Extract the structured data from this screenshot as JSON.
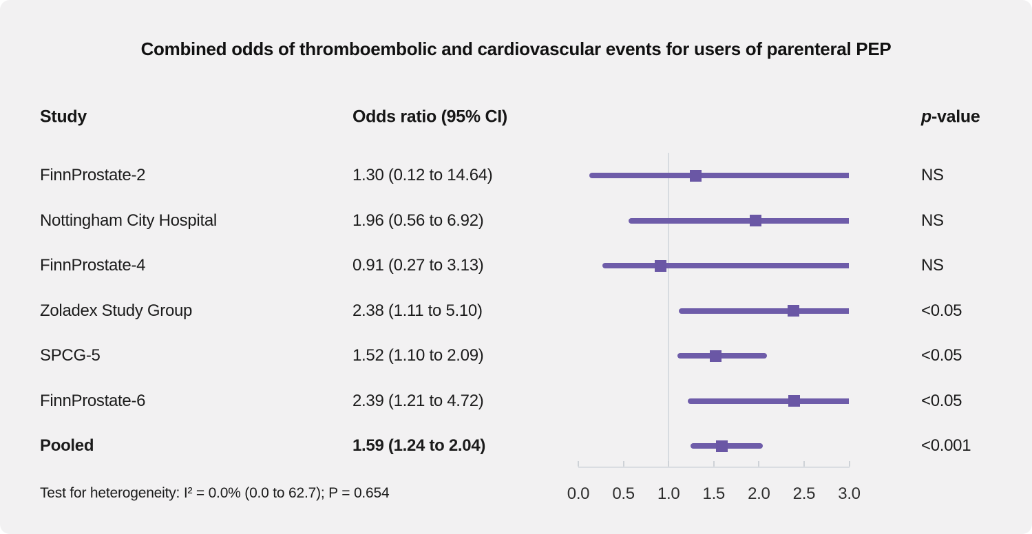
{
  "title": "Combined odds of thromboembolic and cardiovascular events for users of parenteral PEP",
  "columns": {
    "study": "Study",
    "odds_ratio": "Odds ratio (95% CI)",
    "p_italic": "p",
    "p_rest": "-value"
  },
  "footer": "Test for heterogeneity: I² = 0.0% (0.0 to 62.7); P = 0.654",
  "chart_data": {
    "type": "forest",
    "title": "Combined odds of thromboembolic and cardiovascular events for users of parenteral PEP",
    "xlabel": "",
    "xlim": [
      0,
      3
    ],
    "x_tick_labels": [
      "0.0",
      "0.5",
      "1.0",
      "1.5",
      "2.0",
      "2.5",
      "3.0"
    ],
    "reference_value": 1.0,
    "grid": false,
    "colors": {
      "ci_line": "#6e5ca9",
      "marker": "#6a57a5",
      "axis": "#dadde2",
      "background": "#f2f1f2"
    },
    "studies": [
      {
        "name": "FinnProstate-2",
        "or": 1.3,
        "ci_low": 0.12,
        "ci_high": 14.64,
        "or_label": "1.30 (0.12 to 14.64)",
        "p": "NS",
        "pooled": false
      },
      {
        "name": "Nottingham City Hospital",
        "or": 1.96,
        "ci_low": 0.56,
        "ci_high": 6.92,
        "or_label": "1.96 (0.56 to 6.92)",
        "p": "NS",
        "pooled": false
      },
      {
        "name": "FinnProstate-4",
        "or": 0.91,
        "ci_low": 0.27,
        "ci_high": 3.13,
        "or_label": "0.91 (0.27 to 3.13)",
        "p": "NS",
        "pooled": false
      },
      {
        "name": "Zoladex Study Group",
        "or": 2.38,
        "ci_low": 1.11,
        "ci_high": 5.1,
        "or_label": "2.38 (1.11 to 5.10)",
        "p": "<0.05",
        "pooled": false
      },
      {
        "name": "SPCG-5",
        "or": 1.52,
        "ci_low": 1.1,
        "ci_high": 2.09,
        "or_label": "1.52 (1.10 to 2.09)",
        "p": "<0.05",
        "pooled": false
      },
      {
        "name": "FinnProstate-6",
        "or": 2.39,
        "ci_low": 1.21,
        "ci_high": 4.72,
        "or_label": "2.39 (1.21 to 4.72)",
        "p": "<0.05",
        "pooled": false
      },
      {
        "name": "Pooled",
        "or": 1.59,
        "ci_low": 1.24,
        "ci_high": 2.04,
        "or_label": "1.59 (1.24 to 2.04)",
        "p": "<0.001",
        "pooled": true
      }
    ]
  }
}
